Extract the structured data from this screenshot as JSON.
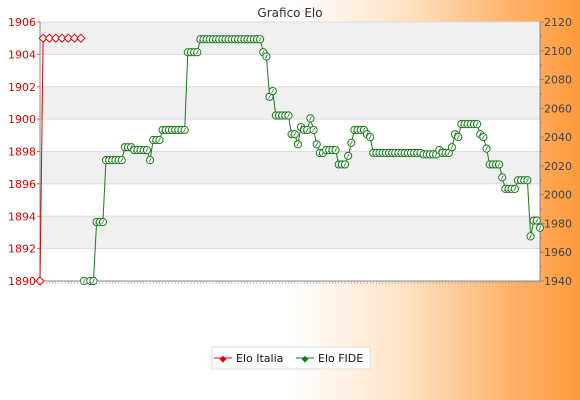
{
  "chart_data": {
    "type": "line",
    "title": "Grafico Elo",
    "left_axis": {
      "ylim": [
        1890,
        1906
      ],
      "ticks": [
        1890,
        1892,
        1894,
        1896,
        1898,
        1900,
        1902,
        1904,
        1906
      ]
    },
    "right_axis": {
      "ylim": [
        1940,
        2120
      ],
      "ticks": [
        1940,
        1960,
        1980,
        2000,
        2020,
        2040,
        2060,
        2080,
        2100,
        2120
      ]
    },
    "grid": true,
    "legend_position": "bottom",
    "colors": {
      "italia": "#e00000",
      "fide": "#1a7a1a",
      "band": "#f0f0f0"
    },
    "series": [
      {
        "name": "Elo Italia",
        "axis": "left",
        "points": [
          [
            0,
            1890
          ],
          [
            1,
            1905
          ],
          [
            3,
            1905
          ],
          [
            5,
            1905
          ],
          [
            7,
            1905
          ],
          [
            9,
            1905
          ],
          [
            11,
            1905
          ],
          [
            13,
            1905
          ]
        ]
      },
      {
        "name": "Elo FIDE",
        "axis": "right",
        "points": [
          [
            14,
            1940
          ],
          [
            16,
            1940
          ],
          [
            17,
            1940
          ],
          [
            18,
            1981
          ],
          [
            19,
            1981
          ],
          [
            20,
            1981
          ],
          [
            21,
            2024
          ],
          [
            22,
            2024
          ],
          [
            23,
            2024
          ],
          [
            24,
            2024
          ],
          [
            25,
            2024
          ],
          [
            26,
            2024
          ],
          [
            27,
            2033
          ],
          [
            28,
            2033
          ],
          [
            29,
            2033
          ],
          [
            30,
            2031
          ],
          [
            31,
            2031
          ],
          [
            32,
            2031
          ],
          [
            33,
            2031
          ],
          [
            34,
            2031
          ],
          [
            35,
            2024
          ],
          [
            36,
            2038
          ],
          [
            37,
            2038
          ],
          [
            38,
            2038
          ],
          [
            39,
            2045
          ],
          [
            40,
            2045
          ],
          [
            41,
            2045
          ],
          [
            42,
            2045
          ],
          [
            43,
            2045
          ],
          [
            44,
            2045
          ],
          [
            45,
            2045
          ],
          [
            46,
            2045
          ],
          [
            47,
            2099
          ],
          [
            48,
            2099
          ],
          [
            49,
            2099
          ],
          [
            50,
            2099
          ],
          [
            51,
            2108
          ],
          [
            52,
            2108
          ],
          [
            53,
            2108
          ],
          [
            54,
            2108
          ],
          [
            55,
            2108
          ],
          [
            56,
            2108
          ],
          [
            57,
            2108
          ],
          [
            58,
            2108
          ],
          [
            59,
            2108
          ],
          [
            60,
            2108
          ],
          [
            61,
            2108
          ],
          [
            62,
            2108
          ],
          [
            63,
            2108
          ],
          [
            64,
            2108
          ],
          [
            65,
            2108
          ],
          [
            66,
            2108
          ],
          [
            67,
            2108
          ],
          [
            68,
            2108
          ],
          [
            69,
            2108
          ],
          [
            70,
            2108
          ],
          [
            71,
            2099
          ],
          [
            72,
            2096
          ],
          [
            73,
            2068
          ],
          [
            74,
            2072
          ],
          [
            75,
            2055
          ],
          [
            76,
            2055
          ],
          [
            77,
            2055
          ],
          [
            78,
            2055
          ],
          [
            79,
            2055
          ],
          [
            80,
            2042
          ],
          [
            81,
            2042
          ],
          [
            82,
            2035
          ],
          [
            83,
            2047
          ],
          [
            84,
            2045
          ],
          [
            85,
            2045
          ],
          [
            86,
            2053
          ],
          [
            87,
            2045
          ],
          [
            88,
            2035
          ],
          [
            89,
            2029
          ],
          [
            90,
            2029
          ],
          [
            91,
            2031
          ],
          [
            92,
            2031
          ],
          [
            93,
            2031
          ],
          [
            94,
            2031
          ],
          [
            95,
            2021
          ],
          [
            96,
            2021
          ],
          [
            97,
            2021
          ],
          [
            98,
            2027
          ],
          [
            99,
            2036
          ],
          [
            100,
            2045
          ],
          [
            101,
            2045
          ],
          [
            102,
            2045
          ],
          [
            103,
            2045
          ],
          [
            104,
            2042
          ],
          [
            105,
            2040
          ],
          [
            106,
            2029
          ],
          [
            107,
            2029
          ],
          [
            108,
            2029
          ],
          [
            109,
            2029
          ],
          [
            110,
            2029
          ],
          [
            111,
            2029
          ],
          [
            112,
            2029
          ],
          [
            113,
            2029
          ],
          [
            114,
            2029
          ],
          [
            115,
            2029
          ],
          [
            116,
            2029
          ],
          [
            117,
            2029
          ],
          [
            118,
            2029
          ],
          [
            119,
            2029
          ],
          [
            120,
            2029
          ],
          [
            121,
            2029
          ],
          [
            122,
            2028
          ],
          [
            123,
            2028
          ],
          [
            124,
            2028
          ],
          [
            125,
            2028
          ],
          [
            126,
            2028
          ],
          [
            127,
            2031
          ],
          [
            128,
            2029
          ],
          [
            129,
            2029
          ],
          [
            130,
            2029
          ],
          [
            131,
            2033
          ],
          [
            132,
            2042
          ],
          [
            133,
            2040
          ],
          [
            134,
            2049
          ],
          [
            135,
            2049
          ],
          [
            136,
            2049
          ],
          [
            137,
            2049
          ],
          [
            138,
            2049
          ],
          [
            139,
            2049
          ],
          [
            140,
            2042
          ],
          [
            141,
            2040
          ],
          [
            142,
            2032
          ],
          [
            143,
            2021
          ],
          [
            144,
            2021
          ],
          [
            145,
            2021
          ],
          [
            146,
            2021
          ],
          [
            147,
            2012
          ],
          [
            148,
            2004
          ],
          [
            149,
            2004
          ],
          [
            150,
            2004
          ],
          [
            151,
            2004
          ],
          [
            152,
            2010
          ],
          [
            153,
            2010
          ],
          [
            154,
            2010
          ],
          [
            155,
            2010
          ],
          [
            156,
            1971
          ],
          [
            157,
            1982
          ],
          [
            158,
            1982
          ],
          [
            159,
            1977
          ]
        ]
      }
    ]
  }
}
